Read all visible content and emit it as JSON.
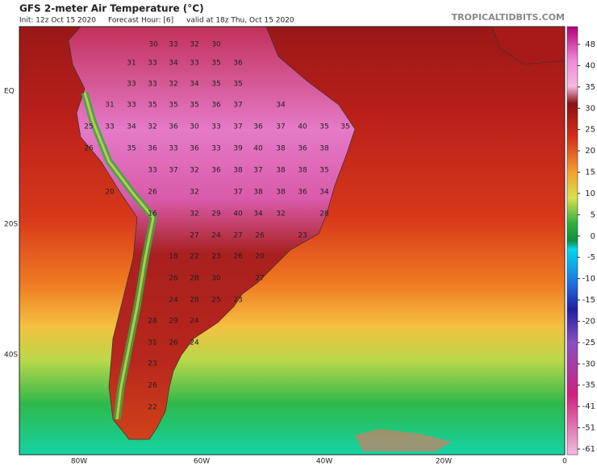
{
  "header": {
    "title": "GFS 2-meter Air Temperature (°C)",
    "init": "Init: 12z Oct 15 2020",
    "forecast_hour": "Forecast Hour: [6]",
    "valid": "valid at 18z Thu, Oct 15 2020",
    "credit": "TROPICALTIDBITS.COM"
  },
  "lat_labels": [
    "EQ",
    "20S",
    "40S"
  ],
  "lon_labels": [
    "80W",
    "60W",
    "40W",
    "20W",
    "0"
  ],
  "colorbar_ticks": [
    48,
    40,
    35,
    30,
    25,
    20,
    15,
    10,
    5,
    0,
    -5,
    -10,
    -15,
    -20,
    -25,
    -30,
    -35,
    -41,
    -51,
    -61
  ],
  "map_labels": [
    30,
    33,
    32,
    30,
    31,
    33,
    34,
    33,
    35,
    36,
    33,
    33,
    32,
    34,
    35,
    35,
    31,
    33,
    35,
    35,
    35,
    36,
    37,
    34,
    25,
    33,
    34,
    32,
    36,
    30,
    33,
    37,
    36,
    37,
    40,
    35,
    35,
    26,
    35,
    36,
    33,
    36,
    33,
    39,
    40,
    38,
    36,
    38,
    33,
    37,
    32,
    36,
    38,
    37,
    38,
    38,
    35,
    20,
    26,
    32,
    37,
    38,
    38,
    36,
    34,
    16,
    32,
    29,
    40,
    34,
    32,
    28,
    27,
    24,
    27,
    26,
    23,
    18,
    22,
    23,
    26,
    20,
    26,
    28,
    30,
    27,
    24,
    28,
    25,
    23,
    28,
    29,
    24,
    31,
    26,
    24,
    23,
    26,
    22
  ]
}
